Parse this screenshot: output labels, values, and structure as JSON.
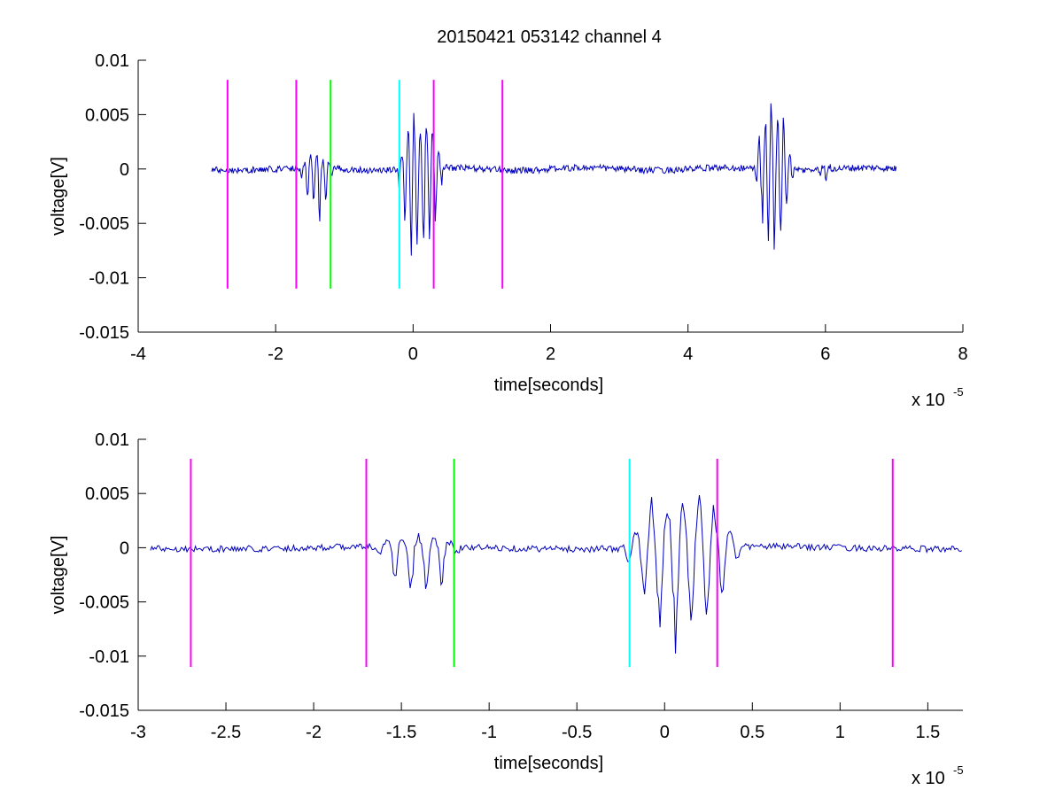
{
  "figure_title": "20150421 053142 channel 4",
  "chart_data": [
    {
      "type": "line",
      "xlabel": "time[seconds]",
      "ylabel": "voltage[V]",
      "x_exponent_label": "x 10",
      "x_exponent_power": "-5",
      "xlim": [
        -4,
        8
      ],
      "ylim": [
        -0.015,
        0.01
      ],
      "xticks": [
        -4,
        -2,
        0,
        2,
        4,
        6,
        8
      ],
      "xtick_labels": [
        "-4",
        "-2",
        "0",
        "2",
        "4",
        "6",
        "8"
      ],
      "yticks": [
        0.01,
        0.005,
        0,
        -0.005,
        -0.01,
        -0.015
      ],
      "ytick_labels": [
        "0.01",
        "0.005",
        "0",
        "-0.005",
        "-0.01",
        "-0.015"
      ],
      "grid": false,
      "series_color": "#0000bb",
      "signal": {
        "x_start": -2.93,
        "x_end": 7.03,
        "noise_amplitude": 0.0003,
        "bursts": [
          {
            "center": -1.4,
            "width": 0.25,
            "min": -0.0052,
            "max": 0.0012
          },
          {
            "center": 0.1,
            "width": 0.35,
            "min": -0.0101,
            "max": 0.0064
          },
          {
            "center": 5.25,
            "width": 0.3,
            "min": -0.0091,
            "max": 0.0075
          },
          {
            "center": 6.0,
            "width": 0.15,
            "min": -0.001,
            "max": 0.0005
          }
        ]
      },
      "markers": [
        {
          "x": -2.7,
          "color": "#ff00ff"
        },
        {
          "x": -1.7,
          "color": "#ff00ff"
        },
        {
          "x": -1.2,
          "color": "#00ff00"
        },
        {
          "x": -0.2,
          "color": "#00ffff"
        },
        {
          "x": 0.3,
          "color": "#ff00ff"
        },
        {
          "x": 1.3,
          "color": "#ff00ff"
        }
      ],
      "marker_range": [
        -0.011,
        0.0082
      ]
    },
    {
      "type": "line",
      "xlabel": "time[seconds]",
      "ylabel": "voltage[V]",
      "x_exponent_label": "x 10",
      "x_exponent_power": "-5",
      "xlim": [
        -3.0,
        1.7
      ],
      "ylim": [
        -0.015,
        0.01
      ],
      "xticks": [
        -3,
        -2.5,
        -2,
        -1.5,
        -1,
        -0.5,
        0,
        0.5,
        1,
        1.5
      ],
      "xtick_labels": [
        "-3",
        "-2.5",
        "-2",
        "-1.5",
        "-1",
        "-0.5",
        "0",
        "0.5",
        "1",
        "1.5"
      ],
      "yticks": [
        0.01,
        0.005,
        0,
        -0.005,
        -0.01,
        -0.015
      ],
      "ytick_labels": [
        "0.01",
        "0.005",
        "0",
        "-0.005",
        "-0.01",
        "-0.015"
      ],
      "grid": false,
      "series_color": "#0000bb",
      "signal": {
        "x_start": -2.93,
        "x_end": 1.7,
        "noise_amplitude": 0.0003,
        "bursts": [
          {
            "center": -1.4,
            "width": 0.25,
            "min": -0.0052,
            "max": 0.0012
          },
          {
            "center": 0.1,
            "width": 0.35,
            "min": -0.0101,
            "max": 0.0064
          }
        ]
      },
      "markers": [
        {
          "x": -2.7,
          "color": "#ff00ff"
        },
        {
          "x": -1.7,
          "color": "#ff00ff"
        },
        {
          "x": -1.2,
          "color": "#00ff00"
        },
        {
          "x": -0.2,
          "color": "#00ffff"
        },
        {
          "x": 0.3,
          "color": "#ff00ff"
        },
        {
          "x": 1.3,
          "color": "#ff00ff"
        }
      ],
      "marker_range": [
        -0.011,
        0.0082
      ]
    }
  ]
}
